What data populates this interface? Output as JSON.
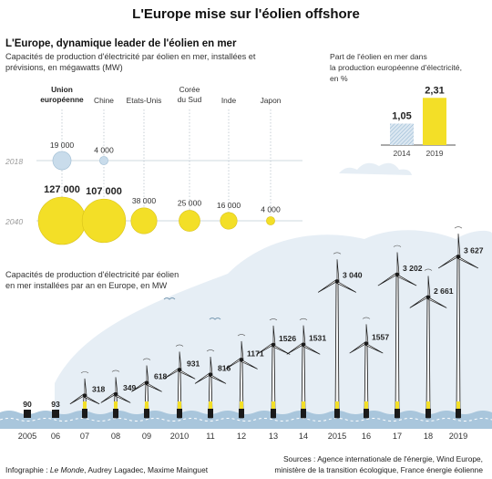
{
  "title": "L'Europe mise sur l'éolien offshore",
  "section1": {
    "title": "L'Europe, dynamique leader de l'éolien en mer",
    "subtitle_line1": "Capacités de production d'électricité par éolien en mer, installées et",
    "subtitle_line2": "prévisions, en mégawatts (MW)"
  },
  "section2": {
    "subtitle_line1": "Capacités de production d'électricité par éolien",
    "subtitle_line2": "en mer installées par an en Europe, en MW"
  },
  "share_block": {
    "line1": "Part de l'éolien en mer dans",
    "line2": "la production européenne d'électricité,",
    "line3": "en %"
  },
  "credits": {
    "prefix": "Infographie : ",
    "newspaper": "Le Monde",
    "authors": ", Audrey Lagadec, Maxime Mainguet"
  },
  "sources": {
    "line1": "Sources : Agence internationale de l'énergie, Wind Europe,",
    "line2": "ministère de la transition écologique, France énergie éolienne"
  },
  "colors": {
    "yellow": "#f3df27",
    "yellow_dark": "#d9c21a",
    "blue_light": "#c9dceb",
    "hatch": "#8fb3d0",
    "sea": "#a9c6dc",
    "sky": "#e6eef5",
    "tower": "#1a1a1a"
  },
  "chart_data": [
    {
      "type": "scatter",
      "name": "bubbles",
      "categories": [
        "Union européenne",
        "Chine",
        "Etats-Unis",
        "Corée du Sud",
        "Inde",
        "Japon"
      ],
      "category_lines": [
        [
          "Union",
          "européenne"
        ],
        [
          "Chine"
        ],
        [
          "Etats-Unis"
        ],
        [
          "Corée",
          "du Sud"
        ],
        [
          "Inde"
        ],
        [
          "Japon"
        ]
      ],
      "bold_categories": [
        0
      ],
      "series": [
        {
          "name": "2018",
          "values": [
            19000,
            4000,
            null,
            null,
            null,
            null
          ],
          "labels": [
            "19 000",
            "4 000",
            "",
            "",
            "",
            ""
          ]
        },
        {
          "name": "2040",
          "values": [
            127000,
            107000,
            38000,
            25000,
            16000,
            4000
          ],
          "labels": [
            "127 000",
            "107 000",
            "38 000",
            "25 000",
            "16 000",
            "4 000"
          ]
        }
      ]
    },
    {
      "type": "bar",
      "name": "share",
      "categories": [
        "2014",
        "2019"
      ],
      "values": [
        1.05,
        2.31
      ],
      "labels": [
        "1,05",
        "2,31"
      ],
      "ylim": [
        0,
        2.5
      ]
    },
    {
      "type": "bar",
      "name": "annual",
      "categories": [
        "2005",
        "06",
        "07",
        "08",
        "09",
        "2010",
        "11",
        "12",
        "13",
        "14",
        "2015",
        "16",
        "17",
        "18",
        "2019"
      ],
      "values": [
        90,
        93,
        318,
        349,
        618,
        931,
        816,
        1171,
        1526,
        1531,
        3040,
        1557,
        3202,
        2661,
        3627
      ],
      "labels": [
        "90",
        "93",
        "318",
        "349",
        "618",
        "931",
        "816",
        "1171",
        "1526",
        "1531",
        "3 040",
        "1557",
        "3 202",
        "2 661",
        "3 627"
      ],
      "ylim": [
        0,
        3700
      ]
    }
  ]
}
